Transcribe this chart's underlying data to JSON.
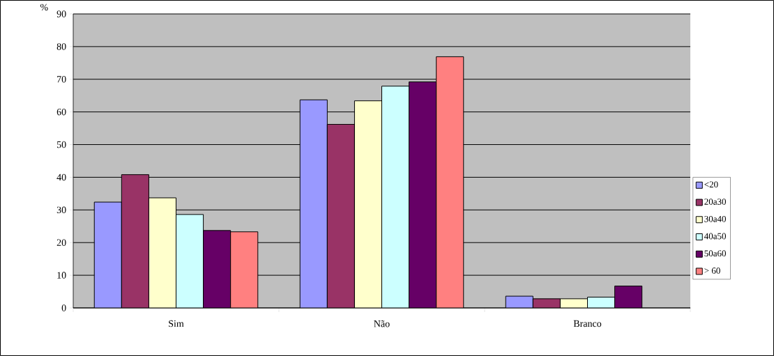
{
  "chart_data": {
    "type": "bar",
    "ylabel": "%",
    "categories": [
      "Sim",
      "Não",
      "Branco"
    ],
    "series": [
      {
        "name": "<20",
        "color": "#9999ff",
        "values": [
          32.4,
          63.7,
          3.6
        ]
      },
      {
        "name": "20a30",
        "color": "#993366",
        "values": [
          40.8,
          56.2,
          2.8
        ]
      },
      {
        "name": "30a40",
        "color": "#ffffcc",
        "values": [
          33.7,
          63.4,
          2.8
        ]
      },
      {
        "name": "40a50",
        "color": "#ccffff",
        "values": [
          28.6,
          67.9,
          3.3
        ]
      },
      {
        "name": "50a60",
        "color": "#660066",
        "values": [
          23.7,
          69.2,
          6.7
        ]
      },
      {
        "name": "> 60",
        "color": "#ff8080",
        "values": [
          23.3,
          76.9,
          null
        ]
      }
    ],
    "ylim": [
      0,
      90
    ],
    "yticks": [
      0,
      10,
      20,
      30,
      40,
      50,
      60,
      70,
      80,
      90
    ],
    "grid": "y",
    "legend": "right"
  }
}
